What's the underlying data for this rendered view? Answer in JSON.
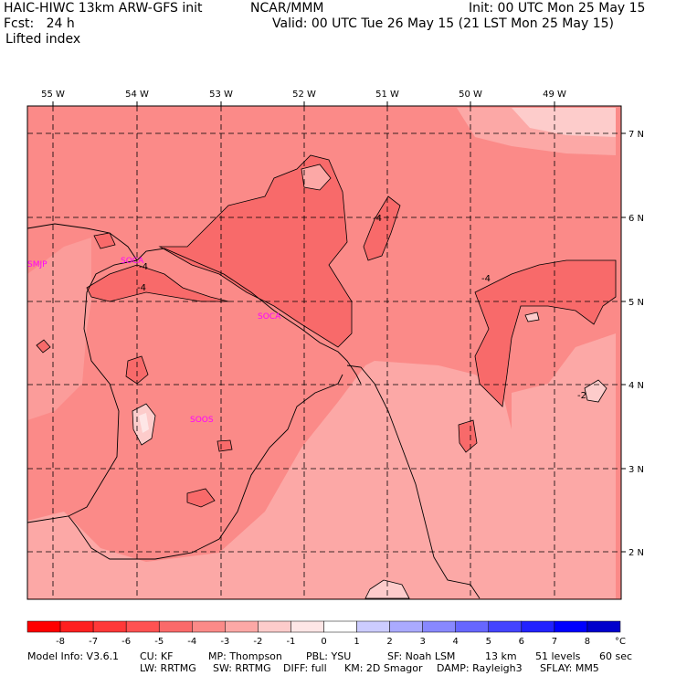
{
  "header": {
    "left_line1": "HAIC-HIWC 13km ARW-GFS init",
    "center_line1": "NCAR/MMM",
    "right_line1": "Init: 00 UTC Mon 25 May 15",
    "left_line2": "Fcst:   24 h",
    "right_line2": "Valid: 00 UTC Tue 26 May 15 (21 LST Mon 25 May 15)",
    "field": "Lifted index"
  },
  "map": {
    "lon_labels": [
      "55 W",
      "54 W",
      "53 W",
      "52 W",
      "51 W",
      "50 W",
      "49 W"
    ],
    "lat_labels": [
      "7 N",
      "6 N",
      "5 N",
      "4 N",
      "3 N",
      "2 N"
    ],
    "stations": [
      "SMJP",
      "SOCA",
      "SOCA",
      "SOOS"
    ],
    "contour_labels": [
      "-4",
      "-4",
      "-4",
      "-4",
      "-2"
    ],
    "colors": {
      "c_-5": "#f86a6a",
      "c_-4": "#fb8a88",
      "c_-3": "#fca8a6",
      "c_-2": "#fdcccb",
      "c_-1": "#fee6e6",
      "station": "#ff00ff"
    }
  },
  "colorbar": {
    "labels": [
      "-8",
      "-7",
      "-6",
      "-5",
      "-4",
      "-3",
      "-2",
      "-1",
      "0",
      "1",
      "2",
      "3",
      "4",
      "5",
      "6",
      "7",
      "8"
    ],
    "unit": "°C",
    "colors": [
      "#ff0000",
      "#ff2020",
      "#ff3838",
      "#ff5252",
      "#fa6a6a",
      "#fb8a88",
      "#fca8a6",
      "#fdcccb",
      "#fee6e6",
      "#ffffff",
      "#ccccff",
      "#aaaaff",
      "#8888ff",
      "#6666ff",
      "#4444ff",
      "#2222ff",
      "#0000ff",
      "#0000cc"
    ]
  },
  "footer": {
    "line1_a": "Model Info: V3.6.1",
    "line1_b": "CU: KF",
    "line1_c": "MP: Thompson",
    "line1_d": "PBL: YSU",
    "line1_e": "SF: Noah LSM",
    "line1_f": "13 km",
    "line1_g": "51 levels",
    "line1_h": "60 sec",
    "line2_a": "LW: RRTMG",
    "line2_b": "SW: RRTMG",
    "line2_c": "DIFF: full",
    "line2_d": "KM: 2D Smagor",
    "line2_e": "DAMP: Rayleigh3",
    "line2_f": "SFLAY: MM5"
  }
}
